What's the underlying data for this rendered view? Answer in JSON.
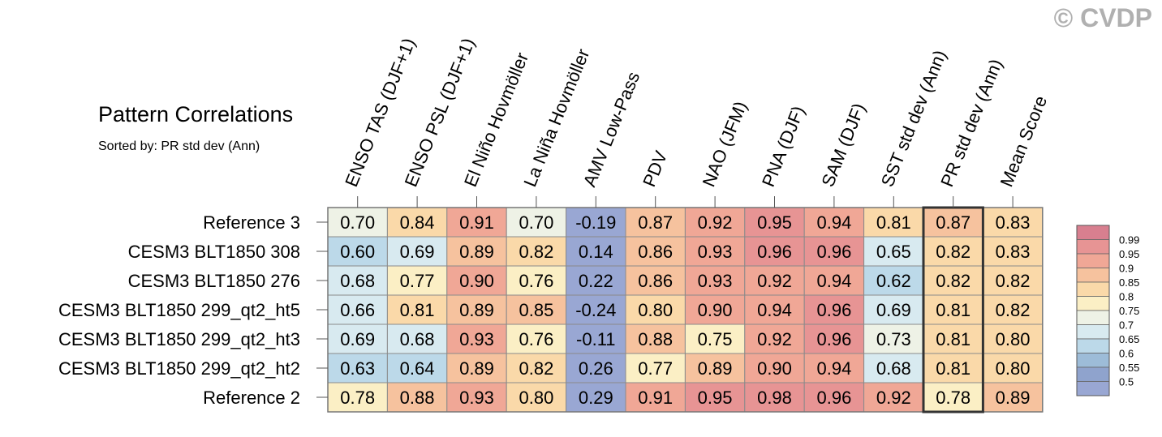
{
  "watermark": "© CVDP",
  "chart_data": {
    "type": "heatmap",
    "title": "Pattern Correlations",
    "subtitle": "Sorted by: PR std dev (Ann)",
    "columns": [
      "ENSO TAS (DJF+1)",
      "ENSO PSL (DJF+1)",
      "El Niño Hovmöller",
      "La Niña Hovmöller",
      "AMV Low-Pass",
      "PDV",
      "NAO (JFM)",
      "PNA (DJF)",
      "SAM (DJF)",
      "SST std dev (Ann)",
      "PR std dev (Ann)",
      "Mean Score"
    ],
    "rows": [
      "Reference 3",
      "CESM3 BLT1850 308",
      "CESM3 BLT1850 276",
      "CESM3 BLT1850 299_qt2_ht5",
      "CESM3 BLT1850 299_qt2_ht3",
      "CESM3 BLT1850 299_qt2_ht2",
      "Reference 2"
    ],
    "values": [
      [
        "0.70",
        "0.84",
        "0.91",
        "0.70",
        "-0.19",
        "0.87",
        "0.92",
        "0.95",
        "0.94",
        "0.81",
        "0.87",
        "0.83"
      ],
      [
        "0.60",
        "0.69",
        "0.89",
        "0.82",
        "0.14",
        "0.86",
        "0.93",
        "0.96",
        "0.96",
        "0.65",
        "0.82",
        "0.83"
      ],
      [
        "0.68",
        "0.77",
        "0.90",
        "0.76",
        "0.22",
        "0.86",
        "0.93",
        "0.92",
        "0.94",
        "0.62",
        "0.82",
        "0.82"
      ],
      [
        "0.66",
        "0.81",
        "0.89",
        "0.85",
        "-0.24",
        "0.80",
        "0.90",
        "0.94",
        "0.96",
        "0.69",
        "0.81",
        "0.82"
      ],
      [
        "0.69",
        "0.68",
        "0.93",
        "0.76",
        "-0.11",
        "0.88",
        "0.75",
        "0.92",
        "0.96",
        "0.73",
        "0.81",
        "0.80"
      ],
      [
        "0.63",
        "0.64",
        "0.89",
        "0.82",
        "0.26",
        "0.77",
        "0.89",
        "0.90",
        "0.94",
        "0.68",
        "0.81",
        "0.80"
      ],
      [
        "0.78",
        "0.88",
        "0.93",
        "0.80",
        "0.29",
        "0.91",
        "0.95",
        "0.98",
        "0.96",
        "0.92",
        "0.78",
        "0.89"
      ]
    ],
    "highlighted_column": "PR std dev (Ann)",
    "colorbar": {
      "labels": [
        "0.99",
        "0.95",
        "0.9",
        "0.85",
        "0.8",
        "0.75",
        "0.7",
        "0.65",
        "0.6",
        "0.55",
        "0.5"
      ],
      "colors": [
        "#d87f8f",
        "#e79494",
        "#f0a796",
        "#f6c29e",
        "#fad9a9",
        "#fbefc5",
        "#eef2e6",
        "#d8eaf0",
        "#bcd9e9",
        "#9dbcd8",
        "#8fa3cd",
        "#99a7d3"
      ]
    }
  }
}
